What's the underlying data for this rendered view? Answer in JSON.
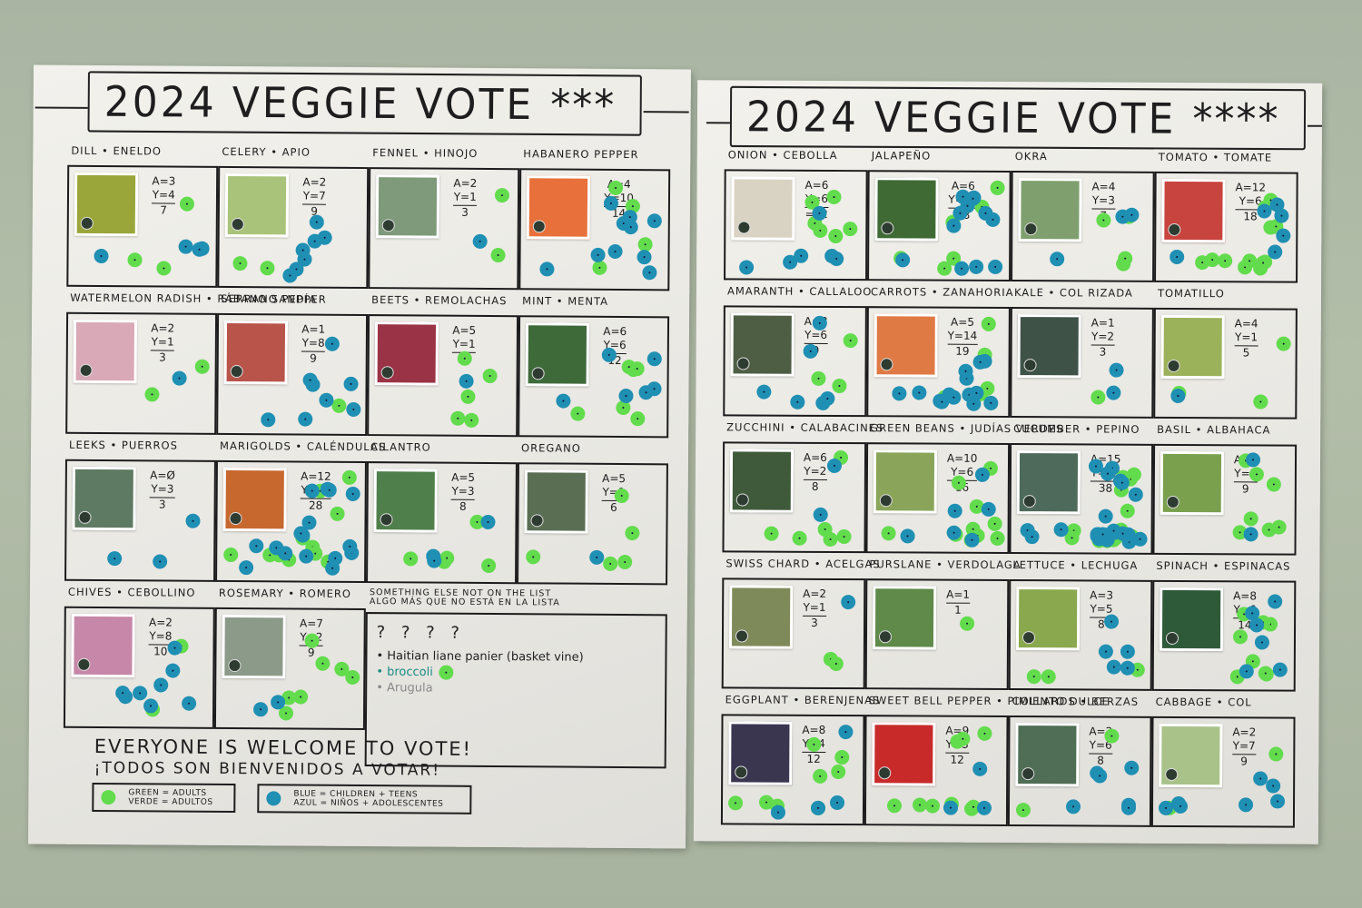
{
  "scene": {
    "description": "Photo of two handwritten 2024 Veggie Vote posters taped to a green wall, with green and blue sticker-dot votes",
    "wall_color": "#aab5a3",
    "paper_color": "#eeede8"
  },
  "legend": {
    "green": {
      "color": "#62dc4c",
      "label_en": "GREEN = ADULTS",
      "label_es": "VERDE = ADULTOS"
    },
    "blue": {
      "color": "#1f8fb3",
      "label_en": "BLUE = CHILDREN + TEENS",
      "label_es": "AZUL = NIÑOS + ADOLESCENTES"
    }
  },
  "welcome": {
    "en": "EVERYONE IS WELCOME TO VOTE!",
    "es": "¡TODOS SON BIENVENIDOS A VOTAR!"
  },
  "posters": [
    {
      "title": "2024 VEGGIE VOTE",
      "stars": "***",
      "rows": [
        {
          "cells": [
            {
              "label": "DILL • ENELDO",
              "photo": "#9aa63a",
              "A": "A=3",
              "Y": "Y=4",
              "total": "7",
              "green": 3,
              "blue": 4
            },
            {
              "label": "CELERY • APIO",
              "photo": "#a9c47a",
              "A": "A=2",
              "Y": "Y=7",
              "total": "9",
              "green": 2,
              "blue": 7
            },
            {
              "label": "FENNEL • HINOJO",
              "photo": "#7f9a7a",
              "A": "A=2",
              "Y": "Y=1",
              "total": "3",
              "green": 2,
              "blue": 1
            },
            {
              "label": "HABANERO PEPPER",
              "photo": "#e8703a",
              "A": "A=4",
              "Y": "Y=10",
              "total": "14",
              "green": 4,
              "blue": 10
            }
          ]
        },
        {
          "cells": [
            {
              "label": "WATERMELON RADISH • RÁBANO SANDÍA",
              "photo": "#d9a9b7",
              "A": "A=2",
              "Y": "Y=1",
              "total": "3",
              "green": 2,
              "blue": 1
            },
            {
              "label": "SERRANO PEPPER",
              "photo": "#b8544a",
              "A": "A=1",
              "Y": "Y=8",
              "total": "9",
              "green": 1,
              "blue": 8
            },
            {
              "label": "BEETS • REMOLACHAS",
              "photo": "#9b3346",
              "A": "A=5",
              "Y": "Y=1",
              "total": "6",
              "green": 5,
              "blue": 1
            },
            {
              "label": "MINT • MENTA",
              "photo": "#3e6a3a",
              "A": "A=6",
              "Y": "Y=6",
              "total": "12",
              "green": 6,
              "blue": 6
            }
          ]
        },
        {
          "cells": [
            {
              "label": "LEEKS • PUERROS",
              "photo": "#5e7a63",
              "A": "A=Ø",
              "Y": "Y=3",
              "total": "3",
              "green": 0,
              "blue": 3
            },
            {
              "label": "MARIGOLDS • CALÉNDULAS",
              "photo": "#c7682e",
              "A": "A=12",
              "Y": "Y=16",
              "total": "28",
              "green": 12,
              "blue": 16
            },
            {
              "label": "CILANTRO",
              "photo": "#4f7f4a",
              "A": "A=5",
              "Y": "Y=3",
              "total": "8",
              "green": 5,
              "blue": 3
            },
            {
              "label": "OREGANO",
              "photo": "#5a6e54",
              "A": "A=5",
              "Y": "Y=1",
              "total": "6",
              "green": 5,
              "blue": 1
            }
          ]
        },
        {
          "cells": [
            {
              "label": "CHIVES • CEBOLLINO",
              "photo": "#c687a8",
              "A": "A=2",
              "Y": "Y=8",
              "total": "10",
              "green": 2,
              "blue": 8
            },
            {
              "label": "ROSEMARY • ROMERO",
              "photo": "#8c9a8a",
              "A": "A=7",
              "Y": "Y=2",
              "total": "9",
              "green": 7,
              "blue": 2
            }
          ],
          "other": {
            "label_en": "SOMETHING ELSE NOT ON THE LIST",
            "label_es": "ALGO MÁS QUE NO ESTÁ EN LA LISTA",
            "questions": "? ? ? ?",
            "items": [
              {
                "text": "• Haitian liane panier (basket vine)",
                "style": "dark"
              },
              {
                "text": "• broccoli",
                "style": "teal",
                "green": 1
              },
              {
                "text": "• Arugula",
                "style": "grey"
              }
            ]
          }
        }
      ]
    },
    {
      "title": "2024 VEGGIE VOTE",
      "stars": "****",
      "rows": [
        {
          "cells": [
            {
              "label": "ONION • CEBOLLA",
              "photo": "#d9d3c4",
              "A": "A=6",
              "Y": "Y=6",
              "total": "=12",
              "green": 6,
              "blue": 6
            },
            {
              "label": "JALAPEÑO",
              "photo": "#3f6a34",
              "A": "A=6",
              "Y": "Y=12",
              "total": "18",
              "green": 6,
              "blue": 12
            },
            {
              "label": "OKRA",
              "photo": "#7fa06e",
              "A": "A=4",
              "Y": "Y=3",
              "total": "7",
              "green": 4,
              "blue": 3
            },
            {
              "label": "TOMATO • TOMATE",
              "photo": "#c8443e",
              "A": "A=12",
              "Y": "Y=6",
              "total": "18",
              "green": 12,
              "blue": 6
            }
          ]
        },
        {
          "cells": [
            {
              "label": "AMARANTH • CALLALOO",
              "photo": "#4d5e44",
              "A": "A=3",
              "Y": "Y=6",
              "total": "9",
              "green": 3,
              "blue": 6
            },
            {
              "label": "CARROTS • ZANAHORIA",
              "photo": "#e07a45",
              "A": "A=5",
              "Y": "Y=14",
              "total": "19",
              "green": 5,
              "blue": 14
            },
            {
              "label": "KALE • COL RIZADA",
              "photo": "#3f5248",
              "A": "A=1",
              "Y": "Y=2",
              "total": "3",
              "green": 1,
              "blue": 2
            },
            {
              "label": "TOMATILLO",
              "photo": "#9cb25a",
              "A": "A=4",
              "Y": "Y=1",
              "total": "5",
              "green": 4,
              "blue": 1
            }
          ]
        },
        {
          "cells": [
            {
              "label": "ZUCCHINI • CALABACINES",
              "photo": "#3f5a3a",
              "A": "A=6",
              "Y": "Y=2",
              "total": "8",
              "green": 6,
              "blue": 2
            },
            {
              "label": "GREEN BEANS • JUDÍAS VERDES",
              "photo": "#8aa55a",
              "A": "A=10",
              "Y": "Y=6",
              "total": "16",
              "green": 10,
              "blue": 6
            },
            {
              "label": "CUCUMBER • PEPINO",
              "photo": "#4e6a5a",
              "A": "A=15",
              "Y": "Y=23",
              "total": "38",
              "green": 15,
              "blue": 23
            },
            {
              "label": "BASIL • ALBAHACA",
              "photo": "#7aa04e",
              "A": "A=7",
              "Y": "Y=2",
              "total": "9",
              "green": 7,
              "blue": 2
            }
          ]
        },
        {
          "cells": [
            {
              "label": "SWISS CHARD • ACELGAS",
              "photo": "#7f8a5a",
              "A": "A=2",
              "Y": "Y=1",
              "total": "3",
              "green": 2,
              "blue": 1
            },
            {
              "label": "PURSLANE • VERDOLAGA",
              "photo": "#5f8a4a",
              "A": "A=1",
              "Y": "",
              "total": "1",
              "green": 1,
              "blue": 0
            },
            {
              "label": "LETTUCE • LECHUGA",
              "photo": "#8aa84e",
              "A": "A=3",
              "Y": "Y=5",
              "total": "8",
              "green": 3,
              "blue": 5
            },
            {
              "label": "SPINACH • ESPINACAS",
              "photo": "#2f5a3a",
              "A": "A=8",
              "Y": "Y=6",
              "total": "14",
              "green": 8,
              "blue": 6
            }
          ]
        },
        {
          "cells": [
            {
              "label": "EGGPLANT • BERENJENAS",
              "photo": "#3a3650",
              "A": "A=8",
              "Y": "Y=4",
              "total": "12",
              "green": 8,
              "blue": 4
            },
            {
              "label": "SWEET BELL PEPPER • PIMIENTO DULCE",
              "photo": "#c82a2a",
              "A": "A=9",
              "Y": "Y=3",
              "total": "12",
              "green": 9,
              "blue": 3
            },
            {
              "label": "COLLARDS • BERZAS",
              "photo": "#4f6e55",
              "A": "A=2",
              "Y": "Y=6",
              "total": "8",
              "green": 2,
              "blue": 6
            },
            {
              "label": "CABBAGE • COL",
              "photo": "#a9c28a",
              "A": "A=2",
              "Y": "Y=7",
              "total": "9",
              "green": 2,
              "blue": 7
            }
          ]
        }
      ]
    }
  ]
}
